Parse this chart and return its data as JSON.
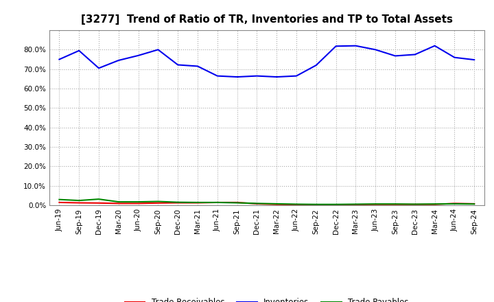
{
  "title": "[3277]  Trend of Ratio of TR, Inventories and TP to Total Assets",
  "x_labels": [
    "Jun-19",
    "Sep-19",
    "Dec-19",
    "Mar-20",
    "Jun-20",
    "Sep-20",
    "Dec-20",
    "Mar-21",
    "Jun-21",
    "Sep-21",
    "Dec-21",
    "Mar-22",
    "Jun-22",
    "Sep-22",
    "Dec-22",
    "Mar-23",
    "Jun-23",
    "Sep-23",
    "Dec-23",
    "Mar-24",
    "Jun-24",
    "Sep-24"
  ],
  "inventories": [
    0.75,
    0.795,
    0.705,
    0.745,
    0.77,
    0.8,
    0.722,
    0.715,
    0.665,
    0.66,
    0.665,
    0.66,
    0.665,
    0.72,
    0.818,
    0.82,
    0.8,
    0.768,
    0.775,
    0.82,
    0.76,
    0.748
  ],
  "trade_receivables": [
    0.015,
    0.013,
    0.012,
    0.01,
    0.01,
    0.012,
    0.013,
    0.013,
    0.015,
    0.015,
    0.008,
    0.005,
    0.004,
    0.004,
    0.004,
    0.004,
    0.005,
    0.005,
    0.005,
    0.005,
    0.01,
    0.008
  ],
  "trade_payables": [
    0.03,
    0.025,
    0.032,
    0.018,
    0.018,
    0.02,
    0.016,
    0.015,
    0.015,
    0.013,
    0.01,
    0.008,
    0.006,
    0.005,
    0.005,
    0.006,
    0.007,
    0.007,
    0.006,
    0.007,
    0.008,
    0.007
  ],
  "line_colors": {
    "inventories": "#0000EE",
    "trade_receivables": "#EE0000",
    "trade_payables": "#008800"
  },
  "ylim": [
    0.0,
    0.9
  ],
  "yticks": [
    0.0,
    0.1,
    0.2,
    0.3,
    0.4,
    0.5,
    0.6,
    0.7,
    0.8
  ],
  "background_color": "#FFFFFF",
  "grid_color": "#AAAAAA",
  "title_fontsize": 11,
  "tick_fontsize": 7.5
}
